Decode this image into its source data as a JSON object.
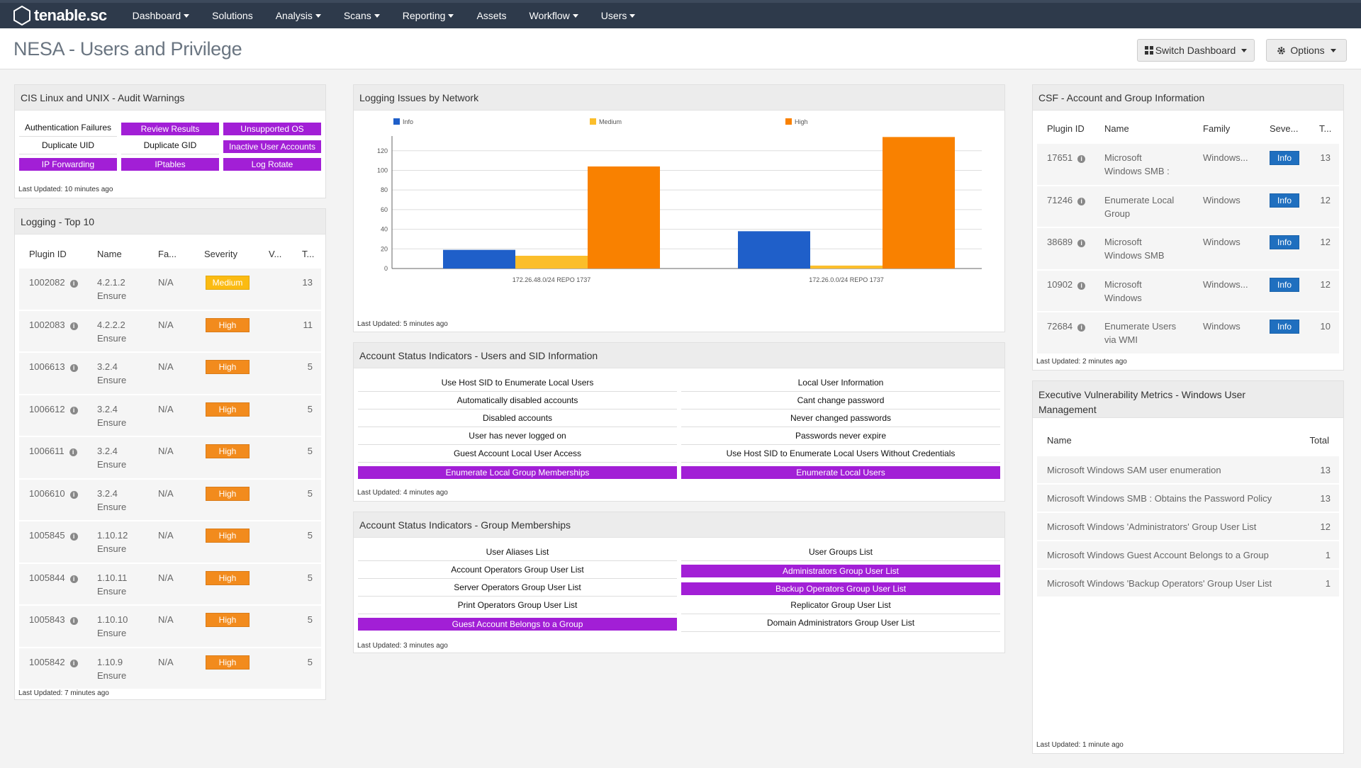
{
  "nav": {
    "brand": "tenable.sc",
    "items": [
      {
        "label": "Dashboard",
        "caret": true
      },
      {
        "label": "Solutions",
        "caret": false
      },
      {
        "label": "Analysis",
        "caret": true
      },
      {
        "label": "Scans",
        "caret": true
      },
      {
        "label": "Reporting",
        "caret": true
      },
      {
        "label": "Assets",
        "caret": false
      },
      {
        "label": "Workflow",
        "caret": true
      },
      {
        "label": "Users",
        "caret": true
      }
    ]
  },
  "header": {
    "title": "NESA - Users and Privilege",
    "switch_label": "Switch Dashboard",
    "options_label": "Options"
  },
  "colors": {
    "hit": "#a21fd6",
    "info": "#1f5fc9",
    "medium": "#fbbe2b",
    "high": "#f98100"
  },
  "cis": {
    "title": "CIS Linux and UNIX - Audit Warnings",
    "cells": [
      {
        "label": "Authentication Failures",
        "hit": false
      },
      {
        "label": "Review Results",
        "hit": true
      },
      {
        "label": "Unsupported OS",
        "hit": true
      },
      {
        "label": "Duplicate UID",
        "hit": false
      },
      {
        "label": "Duplicate GID",
        "hit": false
      },
      {
        "label": "Inactive User Accounts",
        "hit": true
      },
      {
        "label": "IP Forwarding",
        "hit": true
      },
      {
        "label": "IPtables",
        "hit": true
      },
      {
        "label": "Log Rotate",
        "hit": true
      }
    ],
    "updated": "Last Updated: 10 minutes ago"
  },
  "logging": {
    "title": "Logging - Top 10",
    "columns": [
      "Plugin ID",
      "Name",
      "Fa...",
      "Severity",
      "V...",
      "T..."
    ],
    "rows": [
      {
        "id": "1002082",
        "name1": "4.2.1.2",
        "name2": "Ensure",
        "family": "N/A",
        "severity": "Medium",
        "total": "13"
      },
      {
        "id": "1002083",
        "name1": "4.2.2.2",
        "name2": "Ensure",
        "family": "N/A",
        "severity": "High",
        "total": "11"
      },
      {
        "id": "1006613",
        "name1": "3.2.4",
        "name2": "Ensure",
        "family": "N/A",
        "severity": "High",
        "total": "5"
      },
      {
        "id": "1006612",
        "name1": "3.2.4",
        "name2": "Ensure",
        "family": "N/A",
        "severity": "High",
        "total": "5"
      },
      {
        "id": "1006611",
        "name1": "3.2.4",
        "name2": "Ensure",
        "family": "N/A",
        "severity": "High",
        "total": "5"
      },
      {
        "id": "1006610",
        "name1": "3.2.4",
        "name2": "Ensure",
        "family": "N/A",
        "severity": "High",
        "total": "5"
      },
      {
        "id": "1005845",
        "name1": "1.10.12",
        "name2": "Ensure",
        "family": "N/A",
        "severity": "High",
        "total": "5"
      },
      {
        "id": "1005844",
        "name1": "1.10.11",
        "name2": "Ensure",
        "family": "N/A",
        "severity": "High",
        "total": "5"
      },
      {
        "id": "1005843",
        "name1": "1.10.10",
        "name2": "Ensure",
        "family": "N/A",
        "severity": "High",
        "total": "5"
      },
      {
        "id": "1005842",
        "name1": "1.10.9",
        "name2": "Ensure",
        "family": "N/A",
        "severity": "High",
        "total": "5"
      }
    ],
    "updated": "Last Updated: 7 minutes ago"
  },
  "chart_data": {
    "type": "bar",
    "title": "Logging Issues by Network",
    "categories": [
      "172.26.48.0/24 REPO 1737",
      "172.26.0.0/24 REPO 1737"
    ],
    "series": [
      {
        "name": "Info",
        "values": [
          19,
          38
        ],
        "color": "#1f5fc9"
      },
      {
        "name": "Medium",
        "values": [
          13,
          3
        ],
        "color": "#fbbe2b"
      },
      {
        "name": "High",
        "values": [
          104,
          134
        ],
        "color": "#f98100"
      }
    ],
    "ylim": [
      0,
      135
    ],
    "yticks": [
      "0",
      "20",
      "40",
      "60",
      "80",
      "100",
      "120"
    ],
    "legend": "top",
    "grid": true,
    "updated": "Last Updated: 5 minutes ago"
  },
  "sid": {
    "title": "Account Status Indicators - Users and SID Information",
    "cells": [
      {
        "label": "Use Host SID to Enumerate Local Users",
        "hit": false
      },
      {
        "label": "Local User Information",
        "hit": false
      },
      {
        "label": "Automatically disabled accounts",
        "hit": false
      },
      {
        "label": "Cant change password",
        "hit": false
      },
      {
        "label": "Disabled accounts",
        "hit": false
      },
      {
        "label": "Never changed passwords",
        "hit": false
      },
      {
        "label": "User has never logged on",
        "hit": false
      },
      {
        "label": "Passwords never expire",
        "hit": false
      },
      {
        "label": "Guest Account Local User Access",
        "hit": false
      },
      {
        "label": "Use Host SID to Enumerate Local Users Without Credentials",
        "hit": false
      },
      {
        "label": "Enumerate Local Group Memberships",
        "hit": true
      },
      {
        "label": "Enumerate Local Users",
        "hit": true
      }
    ],
    "updated": "Last Updated: 4 minutes ago"
  },
  "groups": {
    "title": "Account Status Indicators - Group Memberships",
    "cells": [
      {
        "label": "User Aliases List",
        "hit": false
      },
      {
        "label": "User Groups List",
        "hit": false
      },
      {
        "label": "Account Operators Group User List",
        "hit": false
      },
      {
        "label": "Administrators Group User List",
        "hit": true
      },
      {
        "label": "Server Operators Group User List",
        "hit": false
      },
      {
        "label": "Backup Operators Group User List",
        "hit": true
      },
      {
        "label": "Print Operators Group User List",
        "hit": false
      },
      {
        "label": "Replicator Group User List",
        "hit": false
      },
      {
        "label": "Guest Account Belongs to a Group",
        "hit": true
      },
      {
        "label": "Domain Administrators Group User List",
        "hit": false
      }
    ],
    "updated": "Last Updated: 3 minutes ago"
  },
  "csf": {
    "title": "CSF - Account and Group Information",
    "columns": [
      "Plugin ID",
      "Name",
      "Family",
      "Seve...",
      "T..."
    ],
    "rows": [
      {
        "id": "17651",
        "name1": "Microsoft",
        "name2": "Windows SMB :",
        "family": "Windows...",
        "severity": "Info",
        "total": "13"
      },
      {
        "id": "71246",
        "name1": "Enumerate Local",
        "name2": "Group",
        "family": "Windows",
        "severity": "Info",
        "total": "12"
      },
      {
        "id": "38689",
        "name1": "Microsoft",
        "name2": "Windows SMB",
        "family": "Windows",
        "severity": "Info",
        "total": "12"
      },
      {
        "id": "10902",
        "name1": "Microsoft",
        "name2": "Windows",
        "family": "Windows...",
        "severity": "Info",
        "total": "12"
      },
      {
        "id": "72684",
        "name1": "Enumerate Users",
        "name2": "via WMI",
        "family": "Windows",
        "severity": "Info",
        "total": "10"
      }
    ],
    "updated": "Last Updated: 2 minutes ago"
  },
  "exec": {
    "title_line1": "Executive Vulnerability Metrics - Windows User",
    "title_line2": "Management",
    "columns": [
      "Name",
      "Total"
    ],
    "rows": [
      {
        "name": "Microsoft Windows SAM user enumeration",
        "total": "13"
      },
      {
        "name": "Microsoft Windows SMB : Obtains the Password Policy",
        "total": "13"
      },
      {
        "name": "Microsoft Windows 'Administrators' Group User List",
        "total": "12"
      },
      {
        "name": "Microsoft Windows Guest Account Belongs to a Group",
        "total": "1"
      },
      {
        "name": "Microsoft Windows 'Backup Operators' Group User List",
        "total": "1"
      }
    ],
    "updated": "Last Updated: 1 minute ago"
  }
}
